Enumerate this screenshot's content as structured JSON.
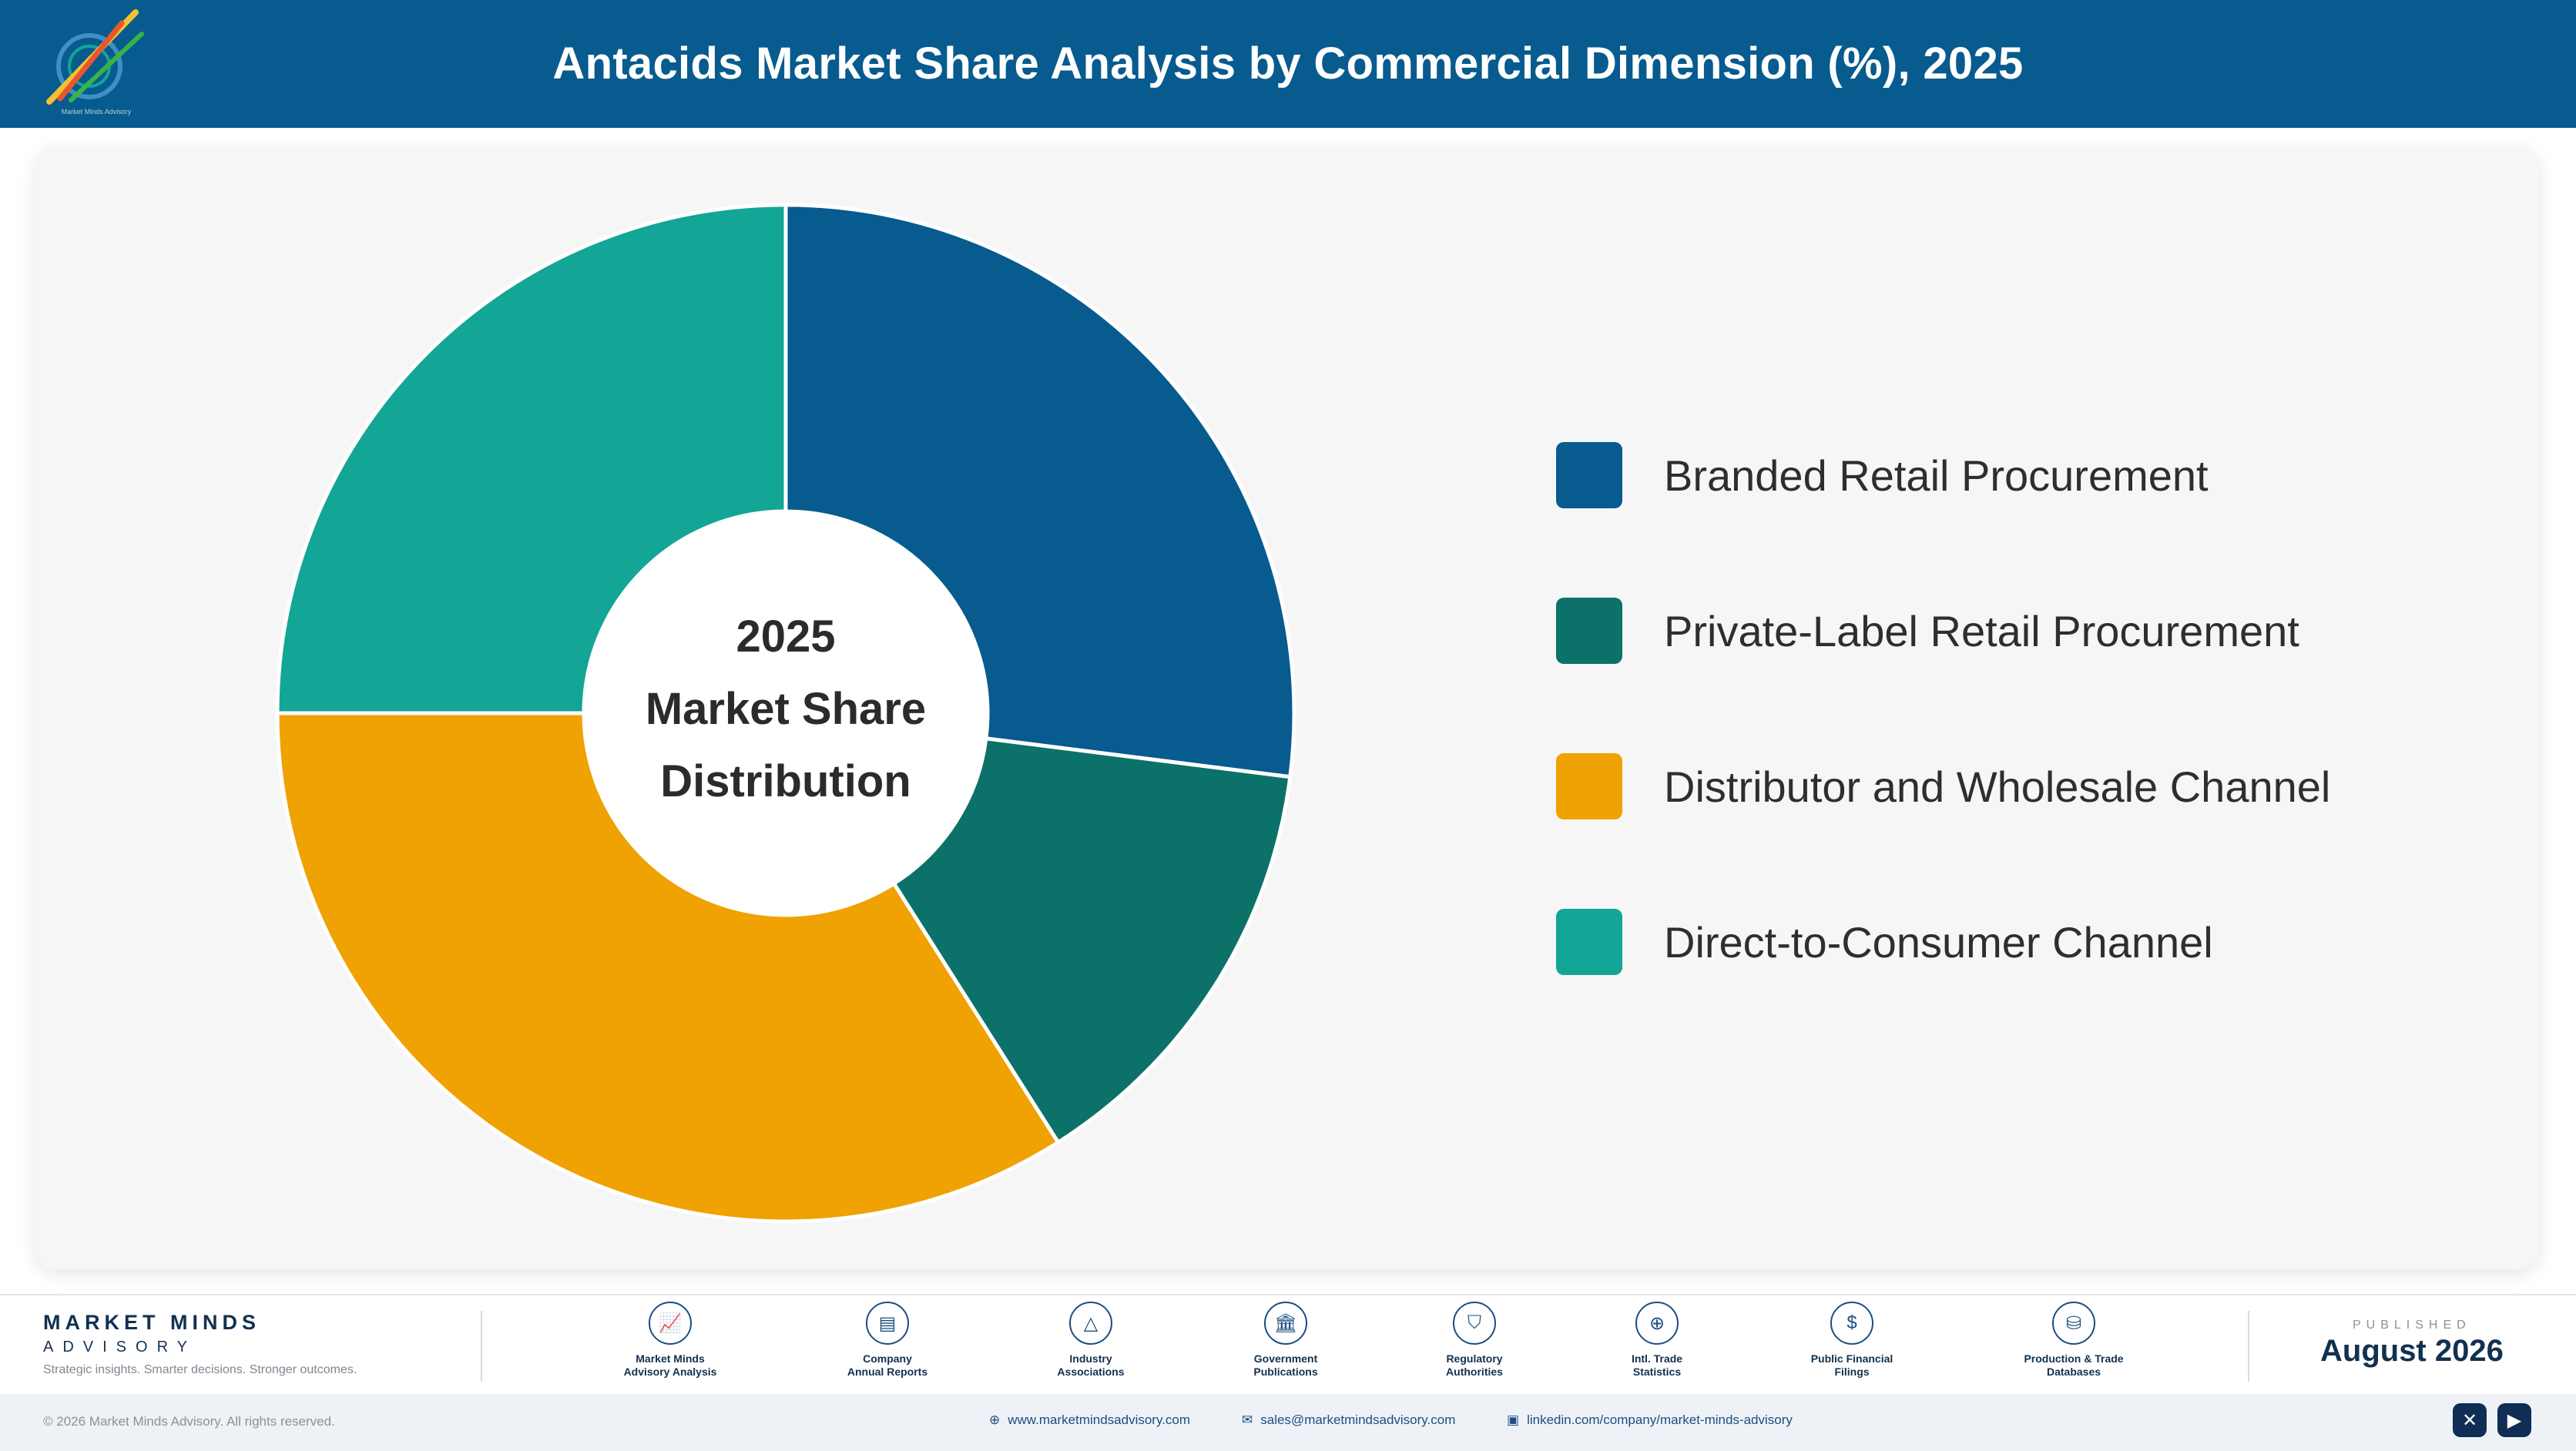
{
  "header": {
    "title": "Antacids Market Share Analysis by Commercial Dimension (%), 2025",
    "logo_text": "Market Minds Advisory"
  },
  "center": {
    "line1": "2025",
    "line2": "Market Share",
    "line3": "Distribution"
  },
  "chart_data": {
    "type": "pie",
    "donut": true,
    "title": "Antacids Market Share Analysis by Commercial Dimension (%), 2025",
    "categories": [
      "Branded Retail Procurement",
      "Private-Label Retail Procurement",
      "Distributor and Wholesale Channel",
      "Direct-to-Consumer Channel"
    ],
    "values": [
      27,
      14,
      34,
      25
    ],
    "colors": [
      "#075b8e",
      "#0c7169",
      "#efa202",
      "#13a595"
    ],
    "legend_position": "right"
  },
  "footer": {
    "brand_name": "MARKET MINDS",
    "brand_sub": "ADVISORY",
    "tagline": "Strategic insights. Smarter decisions. Stronger outcomes.",
    "sources": [
      {
        "label": "Market Minds\nAdvisory Analysis",
        "icon": "trend-icon",
        "glyph": "📈"
      },
      {
        "label": "Company\nAnnual Reports",
        "icon": "document-icon",
        "glyph": "▤"
      },
      {
        "label": "Industry\nAssociations",
        "icon": "network-icon",
        "glyph": "△"
      },
      {
        "label": "Government\nPublications",
        "icon": "government-icon",
        "glyph": "🏛"
      },
      {
        "label": "Regulatory\nAuthorities",
        "icon": "shield-icon",
        "glyph": "⛉"
      },
      {
        "label": "Intl. Trade\nStatistics",
        "icon": "globe-icon",
        "glyph": "⊕"
      },
      {
        "label": "Public Financial\nFilings",
        "icon": "dollar-icon",
        "glyph": "$"
      },
      {
        "label": "Production & Trade\nDatabases",
        "icon": "database-icon",
        "glyph": "⛁"
      }
    ],
    "published_caption": "PUBLISHED",
    "published_date": "August 2026",
    "copyright": "© 2026 Market Minds Advisory. All rights reserved.",
    "website": "www.marketmindsadvisory.com",
    "email": "sales@marketmindsadvisory.com",
    "linkedin": "linkedin.com/company/market-minds-advisory",
    "social": [
      {
        "icon": "x-icon",
        "glyph": "✕"
      },
      {
        "icon": "youtube-icon",
        "glyph": "▶"
      }
    ]
  }
}
